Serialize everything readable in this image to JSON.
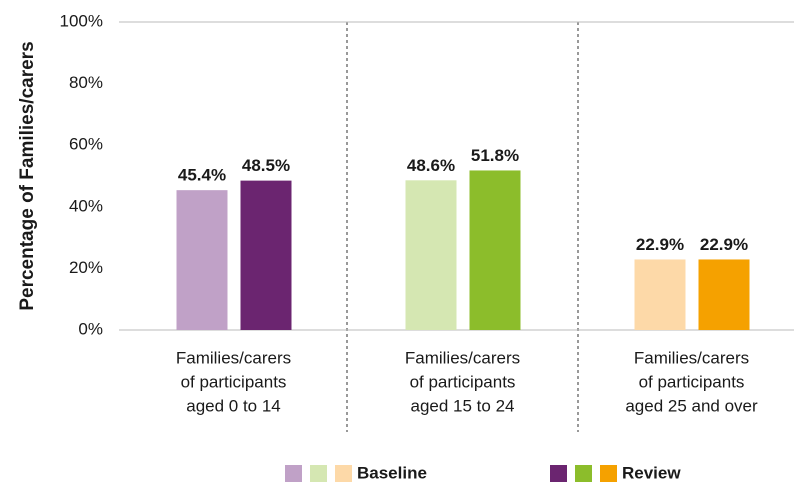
{
  "chart_data": {
    "type": "bar",
    "y_label": "Percentage of Families/carers",
    "categories": [
      [
        "Families/carers",
        "of participants",
        "aged 0 to 14"
      ],
      [
        "Families/carers",
        "of participants",
        "aged 15 to 24"
      ],
      [
        "Families/carers",
        "of participants",
        "aged 25 and over"
      ]
    ],
    "series": [
      {
        "name": "Baseline",
        "colors": [
          "#c0a1c7",
          "#d5e7b2",
          "#fdd9a8"
        ],
        "values": [
          45.4,
          48.6,
          22.9
        ],
        "value_labels": [
          "45.4%",
          "48.6%",
          "22.9%"
        ]
      },
      {
        "name": "Review",
        "colors": [
          "#6b2570",
          "#8cbd2b",
          "#f5a100"
        ],
        "values": [
          48.5,
          51.8,
          22.9
        ],
        "value_labels": [
          "48.5%",
          "51.8%",
          "22.9%"
        ]
      }
    ],
    "ylim": [
      0,
      100
    ],
    "yticks": [
      {
        "value": 0,
        "label": "0%"
      },
      {
        "value": 20,
        "label": "20%"
      },
      {
        "value": 40,
        "label": "40%"
      },
      {
        "value": 60,
        "label": "60%"
      },
      {
        "value": 80,
        "label": "80%"
      },
      {
        "value": 100,
        "label": "100%"
      }
    ],
    "grid": false
  }
}
